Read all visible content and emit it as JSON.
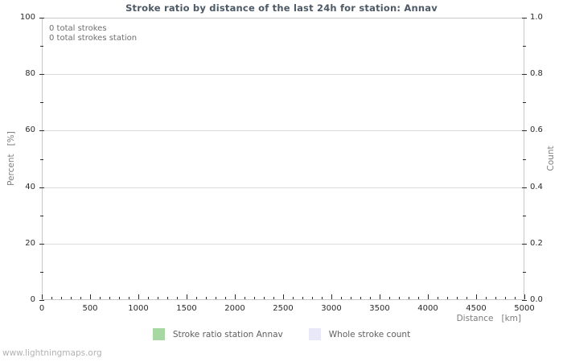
{
  "title": "Stroke ratio by distance of the last 24h for station: Annav",
  "footer": "www.lightningmaps.org",
  "colors": {
    "title_text": "#4d5a66",
    "plot_border": "#c9c9c9",
    "gridline": "#dcdcdc",
    "tick_label_text": "#2b2b2b",
    "axis_title_text": "#7d7d7d",
    "annotation_text": "#6e6e6e",
    "legend_text": "#5f5f5f",
    "footer_text": "#b2b2b2",
    "series_green": "#a8d8a2",
    "series_lavender": "#e8e8f8",
    "background": "#ffffff"
  },
  "chart_data": {
    "type": "line",
    "title": "Stroke ratio by distance of the last 24h for station: Annav",
    "xlabel": "Distance   [km]",
    "ylabel_left": "Percent   [%]",
    "ylabel_right": "Count",
    "xlim": [
      0,
      5000
    ],
    "x_ticks": [
      0,
      500,
      1000,
      1500,
      2000,
      2500,
      3000,
      3500,
      4000,
      4500,
      5000
    ],
    "x_minor_step": 100,
    "ylim_left": [
      0,
      100
    ],
    "y_ticks_left": [
      0,
      20,
      40,
      60,
      80,
      100
    ],
    "y_minor_step_left": 10,
    "ylim_right": [
      0,
      1
    ],
    "y_ticks_right": [
      "0.0",
      "0.2",
      "0.4",
      "0.6",
      "0.8",
      "1.0"
    ],
    "y_minor_step_right": 0.1,
    "grid": true,
    "grid_axis": "y-major-only",
    "legend_position": "bottom-center",
    "annotations": [
      "0 total strokes",
      "0 total strokes station"
    ],
    "total_strokes": 0,
    "total_strokes_station": 0,
    "series": [
      {
        "name": "Stroke ratio station Annav",
        "color": "#a8d8a2",
        "axis": "left",
        "values": []
      },
      {
        "name": "Whole stroke count",
        "color": "#e8e8f8",
        "axis": "right",
        "values": []
      }
    ]
  }
}
